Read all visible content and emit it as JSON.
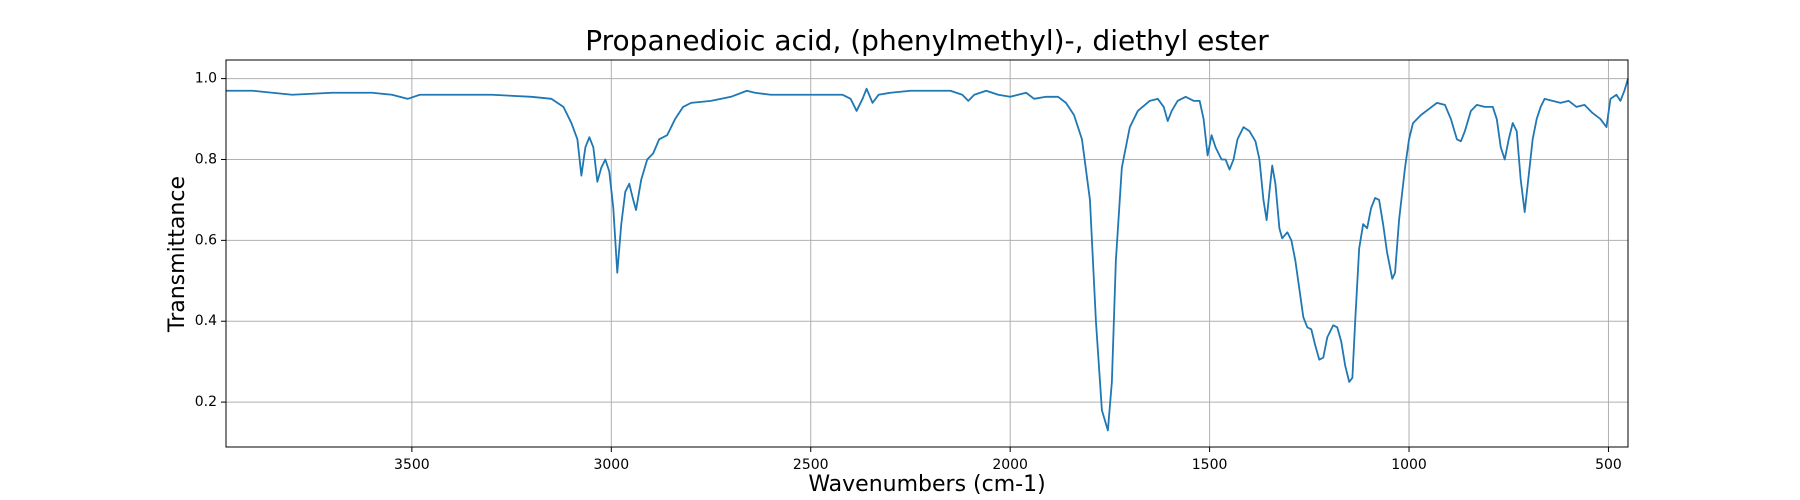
{
  "chart_data": {
    "type": "line",
    "title": "Propanedioic acid, (phenylmethyl)-, diethyl ester",
    "x_label": "Wavenumbers (cm-1)",
    "y_label": "Transmittance",
    "color": "#1f77b4",
    "grid": true,
    "xlim": [
      3966,
      451
    ],
    "ylim": [
      0.089,
      1.046
    ],
    "xticks": [
      3500,
      3000,
      2500,
      2000,
      1500,
      1000,
      500
    ],
    "yticks": [
      0.2,
      0.4,
      0.6,
      0.8,
      {
        "value": 1,
        "label": "1.0"
      }
    ],
    "x": [
      3966,
      3900,
      3850,
      3800,
      3700,
      3600,
      3550,
      3510,
      3480,
      3400,
      3300,
      3200,
      3150,
      3120,
      3100,
      3085,
      3075,
      3065,
      3055,
      3045,
      3035,
      3025,
      3015,
      3005,
      2995,
      2985,
      2975,
      2965,
      2955,
      2945,
      2938,
      2925,
      2910,
      2895,
      2880,
      2860,
      2840,
      2820,
      2800,
      2750,
      2700,
      2660,
      2640,
      2600,
      2500,
      2420,
      2400,
      2385,
      2370,
      2360,
      2345,
      2330,
      2300,
      2250,
      2150,
      2120,
      2105,
      2090,
      2060,
      2030,
      2000,
      1980,
      1960,
      1940,
      1910,
      1880,
      1860,
      1840,
      1820,
      1800,
      1785,
      1770,
      1755,
      1745,
      1735,
      1720,
      1700,
      1680,
      1650,
      1630,
      1615,
      1605,
      1595,
      1580,
      1560,
      1540,
      1525,
      1515,
      1505,
      1495,
      1485,
      1470,
      1460,
      1450,
      1440,
      1430,
      1415,
      1400,
      1385,
      1375,
      1365,
      1357,
      1350,
      1343,
      1335,
      1325,
      1318,
      1305,
      1295,
      1285,
      1275,
      1265,
      1255,
      1245,
      1235,
      1225,
      1215,
      1205,
      1190,
      1180,
      1170,
      1160,
      1150,
      1142,
      1135,
      1125,
      1115,
      1105,
      1095,
      1085,
      1075,
      1065,
      1055,
      1042,
      1035,
      1025,
      1010,
      1000,
      990,
      970,
      950,
      930,
      910,
      895,
      880,
      870,
      860,
      845,
      830,
      810,
      790,
      780,
      770,
      760,
      750,
      740,
      730,
      720,
      710,
      700,
      690,
      680,
      670,
      660,
      640,
      620,
      600,
      580,
      560,
      540,
      520,
      505,
      495,
      480,
      470,
      460,
      451
    ],
    "values": [
      0.97,
      0.97,
      0.965,
      0.96,
      0.965,
      0.965,
      0.96,
      0.95,
      0.96,
      0.96,
      0.96,
      0.955,
      0.95,
      0.93,
      0.89,
      0.85,
      0.76,
      0.83,
      0.855,
      0.83,
      0.745,
      0.78,
      0.8,
      0.77,
      0.68,
      0.52,
      0.64,
      0.72,
      0.74,
      0.7,
      0.675,
      0.75,
      0.8,
      0.815,
      0.85,
      0.86,
      0.9,
      0.93,
      0.94,
      0.945,
      0.955,
      0.97,
      0.965,
      0.96,
      0.96,
      0.96,
      0.95,
      0.92,
      0.95,
      0.975,
      0.94,
      0.96,
      0.965,
      0.97,
      0.97,
      0.96,
      0.945,
      0.96,
      0.97,
      0.96,
      0.955,
      0.96,
      0.965,
      0.95,
      0.955,
      0.955,
      0.94,
      0.91,
      0.85,
      0.7,
      0.4,
      0.18,
      0.13,
      0.25,
      0.55,
      0.78,
      0.88,
      0.92,
      0.945,
      0.95,
      0.93,
      0.895,
      0.92,
      0.945,
      0.955,
      0.945,
      0.945,
      0.9,
      0.81,
      0.86,
      0.83,
      0.8,
      0.8,
      0.775,
      0.8,
      0.85,
      0.88,
      0.87,
      0.845,
      0.8,
      0.7,
      0.65,
      0.72,
      0.785,
      0.74,
      0.63,
      0.605,
      0.62,
      0.6,
      0.55,
      0.48,
      0.41,
      0.385,
      0.38,
      0.34,
      0.305,
      0.31,
      0.36,
      0.39,
      0.385,
      0.35,
      0.29,
      0.25,
      0.26,
      0.4,
      0.58,
      0.64,
      0.63,
      0.68,
      0.705,
      0.7,
      0.64,
      0.57,
      0.505,
      0.52,
      0.65,
      0.78,
      0.85,
      0.89,
      0.91,
      0.925,
      0.94,
      0.935,
      0.9,
      0.85,
      0.845,
      0.87,
      0.92,
      0.935,
      0.93,
      0.93,
      0.9,
      0.83,
      0.8,
      0.85,
      0.89,
      0.87,
      0.75,
      0.67,
      0.76,
      0.85,
      0.9,
      0.93,
      0.95,
      0.945,
      0.94,
      0.945,
      0.93,
      0.935,
      0.915,
      0.9,
      0.88,
      0.95,
      0.96,
      0.945,
      0.97,
      1.0
    ]
  }
}
